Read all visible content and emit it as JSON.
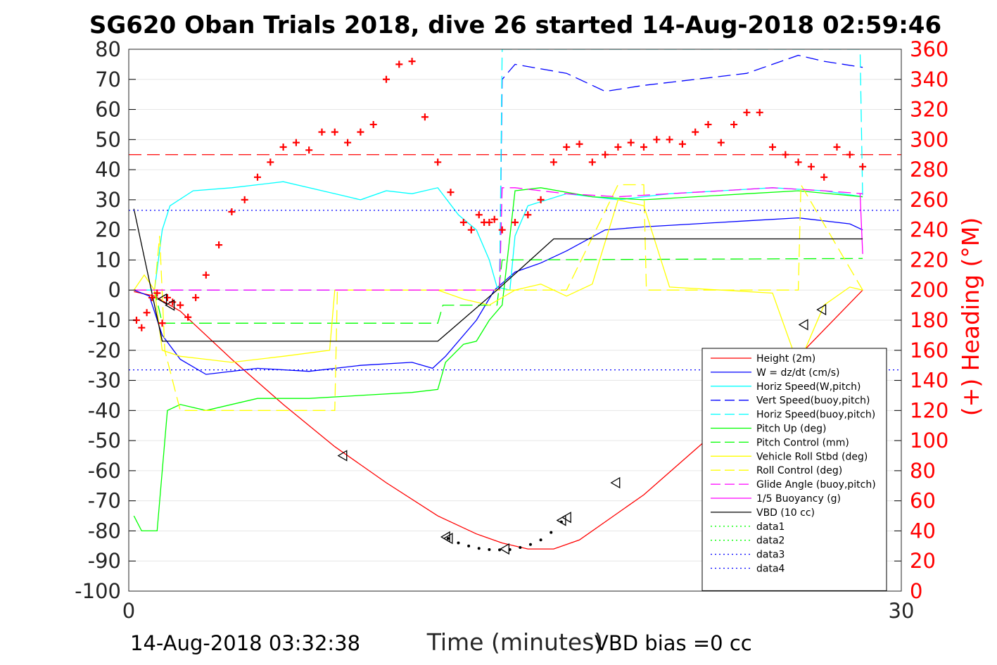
{
  "title": "SG620 Oban Trials 2018, dive 26 started 14-Aug-2018 02:59:46",
  "footer": {
    "timestamp": "14-Aug-2018 03:32:38",
    "vbd_bias": "VBD bias =0 cc"
  },
  "chart_data": {
    "type": "line",
    "xlabel": "Time (minutes)",
    "ylabel": "",
    "ylabel_right": "(+) Heading (°M)",
    "xlim": [
      0,
      30
    ],
    "ylim": [
      -100,
      80
    ],
    "ylim_right": [
      0,
      360
    ],
    "xticks": [
      "0",
      "30"
    ],
    "yticks": [
      "80",
      "70",
      "60",
      "50",
      "40",
      "30",
      "20",
      "10",
      "0",
      "-10",
      "-20",
      "-30",
      "-40",
      "-50",
      "-60",
      "-70",
      "-80",
      "-90",
      "-100"
    ],
    "yticks_right": [
      "360",
      "340",
      "320",
      "300",
      "280",
      "260",
      "240",
      "220",
      "200",
      "180",
      "160",
      "140",
      "120",
      "100",
      "80",
      "60",
      "40",
      "20",
      "0"
    ],
    "legend_position": "bottom-right",
    "grid": true,
    "series": [
      {
        "name": "Height (2m)",
        "color": "#ff0000",
        "style": "solid",
        "x": [
          0.2,
          1.0,
          2.0,
          4.0,
          6.0,
          8.0,
          10.0,
          12.0,
          13.5,
          14.5,
          15.5,
          16.5,
          17.5,
          18.5,
          20.0,
          22.0,
          24.0,
          26.0,
          28.5
        ],
        "y": [
          -0.5,
          -2.0,
          -7.0,
          -23.0,
          -38.0,
          -52.0,
          -64.0,
          -75.0,
          -81.0,
          -84.0,
          -86.0,
          -86.0,
          -83.0,
          -77.0,
          -68.0,
          -53.0,
          -38.0,
          -22.0,
          0.0
        ]
      },
      {
        "name": "W = dz/dt (cm/s)",
        "color": "#0000ff",
        "style": "solid",
        "x": [
          0.2,
          0.8,
          1.3,
          2.0,
          3.0,
          5.0,
          7.0,
          9.0,
          11.0,
          11.8,
          12.3,
          13.5,
          14.2,
          14.6,
          15.0,
          16.0,
          17.0,
          18.5,
          20.0,
          22.0,
          24.0,
          26.0,
          28.0,
          28.5
        ],
        "y": [
          0.0,
          -2.0,
          -15.0,
          -23.0,
          -28.0,
          -26.0,
          -27.0,
          -25.0,
          -24.0,
          -26.0,
          -22.0,
          -10.0,
          0.0,
          3.0,
          6.0,
          9.0,
          13.0,
          20.0,
          21.0,
          22.0,
          23.0,
          24.0,
          22.0,
          20.0
        ]
      },
      {
        "name": "Horiz Speed(W,pitch)",
        "color": "#00ffff",
        "style": "solid",
        "x": [
          0.2,
          1.0,
          1.3,
          1.6,
          2.5,
          4.0,
          6.0,
          8.0,
          9.0,
          10.0,
          11.0,
          12.0,
          12.8,
          13.5,
          14.0,
          14.3,
          14.8,
          15.0,
          15.5,
          17.0,
          19.0,
          21.0,
          23.0,
          25.0,
          27.0,
          28.5
        ],
        "y": [
          0.0,
          0.0,
          20.0,
          28.0,
          33.0,
          34.0,
          36.0,
          32.0,
          30.0,
          33.0,
          32.0,
          34.0,
          25.0,
          20.0,
          10.0,
          1.0,
          0.0,
          18.0,
          28.0,
          32.0,
          30.0,
          32.0,
          33.0,
          34.0,
          33.0,
          31.0
        ]
      },
      {
        "name": "Vert Speed(buoy,pitch)",
        "color": "#0000ff",
        "style": "dashed",
        "x": [
          0.2,
          12.0,
          14.4,
          14.5,
          15.0,
          17.0,
          18.5,
          20.0,
          22.0,
          24.0,
          26.0,
          27.0,
          28.5
        ],
        "y": [
          0.0,
          0.0,
          0.0,
          70.0,
          75.0,
          72.0,
          66.0,
          68.0,
          70.0,
          72.0,
          78.0,
          76.0,
          74.0
        ]
      },
      {
        "name": "Horiz Speed(buoy,pitch)",
        "color": "#00ffff",
        "style": "dashed",
        "x": [
          0.2,
          12.0,
          14.4,
          14.5,
          28.4,
          28.5
        ],
        "y": [
          0.0,
          0.0,
          0.0,
          80.0,
          80.0,
          30.0
        ]
      },
      {
        "name": "Pitch Up (deg)",
        "color": "#00ff00",
        "style": "solid",
        "x": [
          0.2,
          0.5,
          1.0,
          1.1,
          1.5,
          2.0,
          3.0,
          5.0,
          7.0,
          9.0,
          11.0,
          12.0,
          12.3,
          13.0,
          13.5,
          14.0,
          14.5,
          15.0,
          16.0,
          18.0,
          20.0,
          22.0,
          24.0,
          26.0,
          28.5
        ],
        "y": [
          -75.0,
          -80.0,
          -80.0,
          -80.0,
          -40.0,
          -38.0,
          -40.0,
          -36.0,
          -36.0,
          -35.0,
          -34.0,
          -33.0,
          -24.0,
          -18.0,
          -17.0,
          -10.0,
          -5.0,
          33.0,
          34.0,
          31.0,
          30.0,
          31.0,
          32.0,
          33.0,
          31.0
        ]
      },
      {
        "name": "Pitch Control (mm)",
        "color": "#00ff00",
        "style": "dashed",
        "x": [
          0.2,
          1.0,
          1.3,
          2.0,
          12.0,
          12.2,
          14.3,
          14.5,
          28.5
        ],
        "y": [
          0.0,
          0.0,
          -11.0,
          -11.0,
          -11.0,
          -5.0,
          -5.0,
          10.0,
          10.5
        ]
      },
      {
        "name": "Vehicle Roll Stbd (deg)",
        "color": "#ffff00",
        "style": "solid",
        "x": [
          0.2,
          0.6,
          1.0,
          1.3,
          2.0,
          4.0,
          6.0,
          7.8,
          8.0,
          10.0,
          12.0,
          13.0,
          14.0,
          15.0,
          16.0,
          17.0,
          18.0,
          19.0,
          20.0,
          21.0,
          23.0,
          25.0,
          26.0,
          27.0,
          28.0,
          28.5
        ],
        "y": [
          0.0,
          5.0,
          0.0,
          -20.0,
          -22.0,
          -24.0,
          -22.0,
          -20.0,
          0.0,
          0.0,
          0.0,
          -3.0,
          -5.0,
          0.0,
          2.0,
          -2.0,
          2.0,
          30.0,
          28.0,
          1.0,
          0.0,
          -1.0,
          -25.0,
          -5.0,
          1.0,
          0.0
        ]
      },
      {
        "name": "Roll Control (deg)",
        "color": "#ffff00",
        "style": "dashed",
        "x": [
          0.2,
          1.0,
          1.2,
          1.4,
          2.0,
          4.0,
          8.0,
          8.1,
          14.5,
          17.0,
          19.0,
          20.0,
          20.1,
          26.0,
          26.1,
          28.5
        ],
        "y": [
          0.0,
          0.0,
          18.0,
          -20.0,
          -40.0,
          -40.0,
          -40.0,
          0.0,
          0.0,
          0.0,
          35.0,
          35.0,
          0.0,
          0.0,
          35.0,
          0.0
        ]
      },
      {
        "name": "Glide Angle (buoy,pitch)",
        "color": "#ff00ff",
        "style": "dashed",
        "x": [
          0.2,
          14.4,
          14.5,
          15.0,
          17.0,
          19.0,
          21.0,
          23.0,
          25.0,
          27.0,
          28.5
        ],
        "y": [
          0.0,
          0.0,
          34.0,
          34.0,
          32.0,
          31.0,
          32.0,
          33.0,
          34.0,
          33.0,
          32.0
        ]
      },
      {
        "name": "1/5 Buoyancy (g)",
        "color": "#ff00ff",
        "style": "solid",
        "x": [
          28.4,
          28.5
        ],
        "y": [
          32.0,
          12.0
        ]
      },
      {
        "name": "VBD (10 cc)",
        "color": "#000000",
        "style": "solid",
        "x": [
          0.2,
          1.3,
          12.0,
          14.3,
          16.5,
          28.5
        ],
        "y": [
          27.0,
          -17.0,
          -17.0,
          0.0,
          17.0,
          17.0
        ]
      },
      {
        "name": "data1",
        "color": "#00ff00",
        "style": "dotted",
        "x": [],
        "y": []
      },
      {
        "name": "data2",
        "color": "#00ff00",
        "style": "dotted",
        "x": [],
        "y": []
      },
      {
        "name": "data3",
        "color": "#0000ff",
        "style": "dotted",
        "x": [
          0,
          30
        ],
        "y": [
          26.5,
          26.5
        ]
      },
      {
        "name": "data4",
        "color": "#0000ff",
        "style": "dotted",
        "x": [
          0,
          30
        ],
        "y": [
          -26.5,
          -26.5
        ]
      }
    ],
    "reference_lines": [
      {
        "axis": "right",
        "value": 290,
        "color": "#ff0000",
        "style": "dashed"
      }
    ],
    "heading_points": {
      "color": "#ff0000",
      "marker": "+",
      "x": [
        0.3,
        0.5,
        0.7,
        0.9,
        1.1,
        1.3,
        1.5,
        1.7,
        2.0,
        2.3,
        2.6,
        3.0,
        3.5,
        4.0,
        4.5,
        5.0,
        5.5,
        6.0,
        6.5,
        7.0,
        7.5,
        8.0,
        8.5,
        9.0,
        9.5,
        10.0,
        10.5,
        11.0,
        11.5,
        12.0,
        12.5,
        13.0,
        13.3,
        13.6,
        13.8,
        14.0,
        14.2,
        14.5,
        15.0,
        15.5,
        16.0,
        16.5,
        17.0,
        17.5,
        18.0,
        18.5,
        19.0,
        19.5,
        20.0,
        20.5,
        21.0,
        21.5,
        22.0,
        22.5,
        23.0,
        23.5,
        24.0,
        24.5,
        25.0,
        25.5,
        26.0,
        26.5,
        27.0,
        27.5,
        28.0,
        28.5
      ],
      "y": [
        180,
        175,
        185,
        195,
        198,
        178,
        195,
        192,
        190,
        182,
        195,
        210,
        230,
        252,
        260,
        275,
        285,
        295,
        298,
        293,
        305,
        305,
        298,
        305,
        310,
        340,
        350,
        352,
        315,
        285,
        265,
        245,
        240,
        250,
        245,
        245,
        247,
        240,
        245,
        250,
        260,
        285,
        295,
        297,
        285,
        290,
        295,
        298,
        295,
        300,
        300,
        297,
        305,
        310,
        298,
        310,
        318,
        318,
        295,
        290,
        285,
        282,
        275,
        295,
        290,
        282
      ]
    },
    "surface_markers": {
      "marker": "triangle-left",
      "x": [
        1.3,
        1.6,
        8.3,
        12.3,
        12.4,
        14.6,
        16.8,
        17.0,
        18.9,
        26.2,
        26.9
      ],
      "y": [
        -3.0,
        -5.0,
        -55.0,
        -82.0,
        -82.5,
        -86.0,
        -76.5,
        -75.5,
        -64.0,
        -11.5,
        -6.5
      ]
    },
    "bottom_dots": {
      "color": "#000000",
      "x": [
        12.4,
        12.8,
        13.2,
        13.6,
        14.0,
        14.4,
        14.8,
        15.2,
        15.6,
        16.0,
        16.4,
        16.8
      ],
      "y": [
        -82.5,
        -84.0,
        -85.0,
        -85.8,
        -86.2,
        -86.3,
        -86.2,
        -85.5,
        -84.5,
        -83.0,
        -80.5,
        -77.0
      ]
    }
  }
}
